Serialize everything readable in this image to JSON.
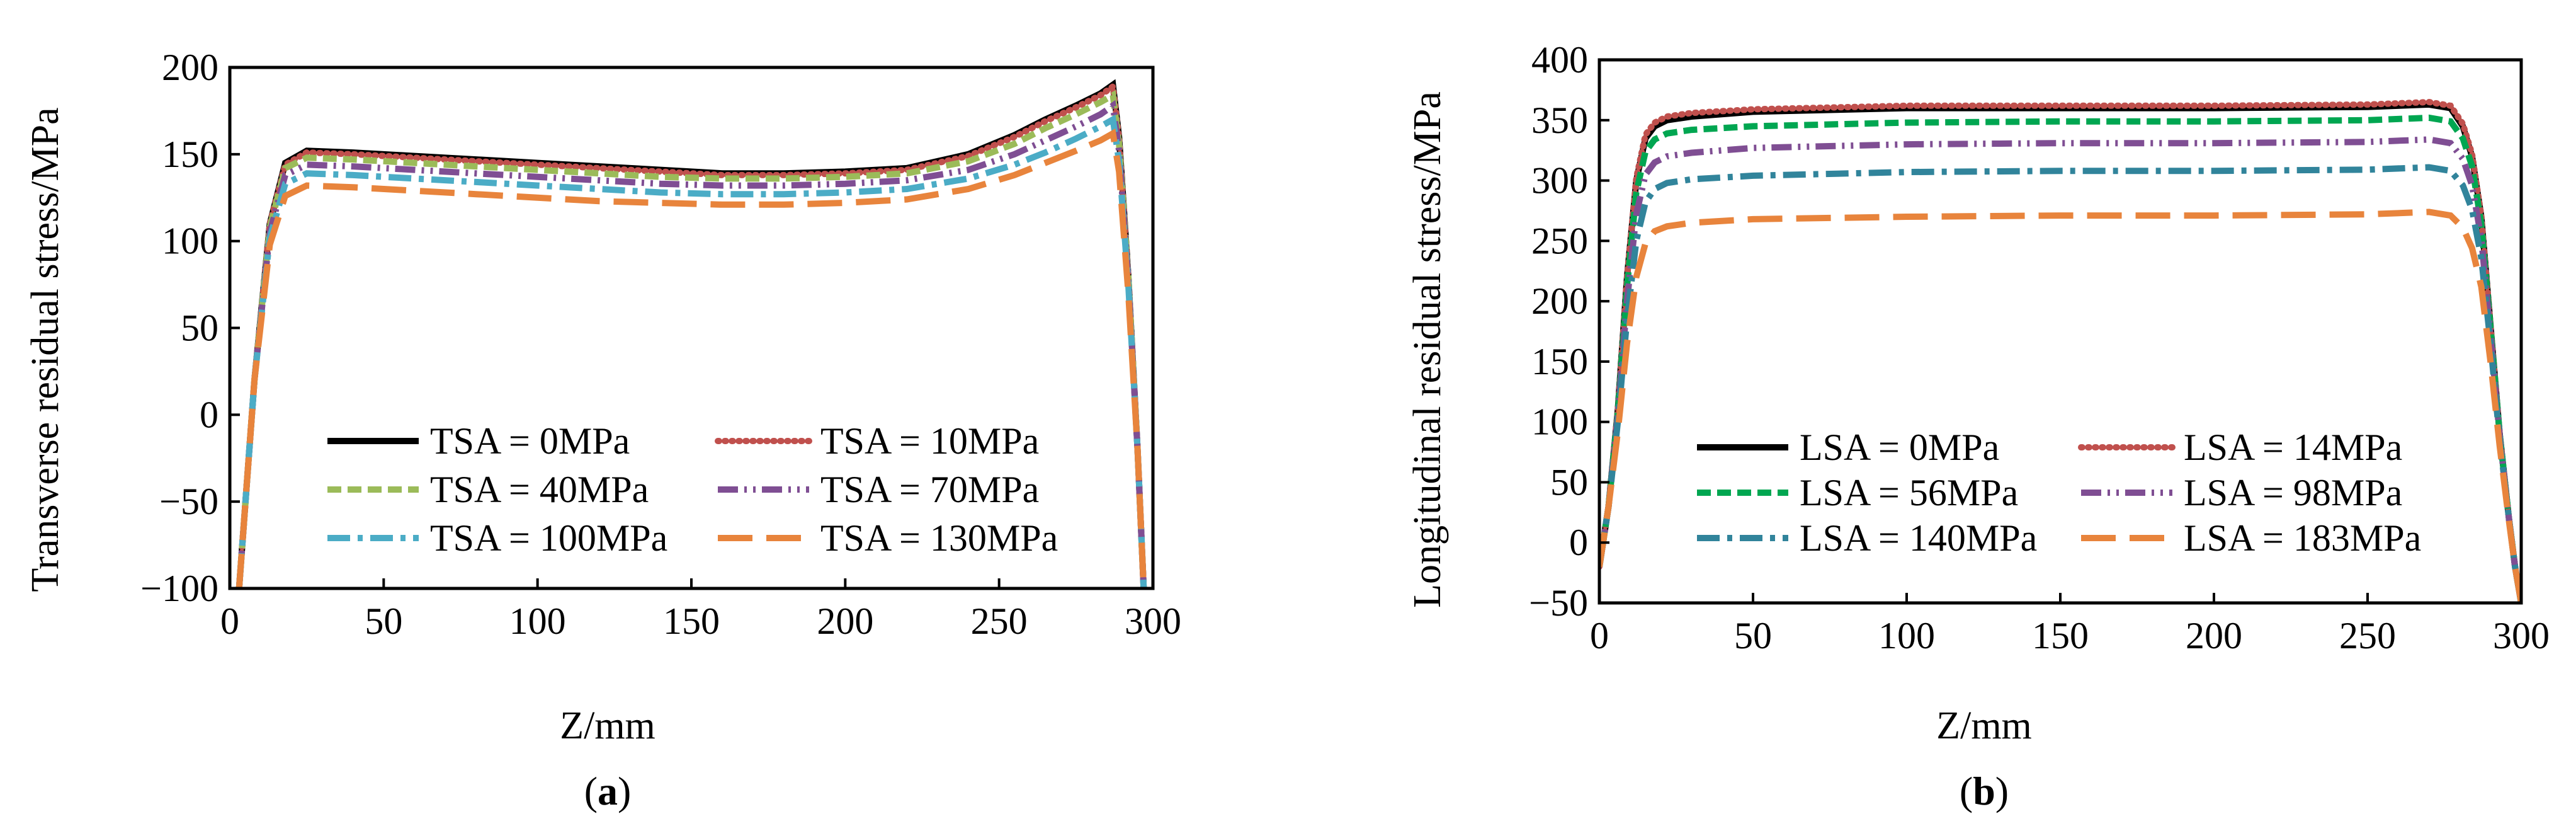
{
  "chart_data": [
    {
      "id": "a",
      "type": "line",
      "caption": {
        "open": "(",
        "letter": "a",
        "close": ")"
      },
      "xlabel": "Z/mm",
      "ylabel": "Transverse residual stress/MPa",
      "xlim": [
        0,
        300
      ],
      "ylim": [
        -100,
        200
      ],
      "xticks": [
        0,
        50,
        100,
        150,
        200,
        250,
        300
      ],
      "yticks": [
        -100,
        -50,
        0,
        50,
        100,
        150,
        200
      ],
      "ytick_labels": [
        "−100",
        "−50",
        "0",
        "50",
        "100",
        "150",
        "200"
      ],
      "grid": false,
      "legend_position": "bottom-center",
      "series": [
        {
          "name": "TSA = 0MPa",
          "color": "#000000",
          "dash": "solid",
          "x": [
            3,
            8,
            13,
            18,
            25,
            40,
            60,
            80,
            100,
            120,
            140,
            160,
            180,
            200,
            220,
            240,
            255,
            265,
            275,
            283,
            287,
            289,
            292,
            295,
            297
          ],
          "y": [
            -100,
            20,
            110,
            145,
            152,
            151,
            149,
            147,
            145,
            143,
            141,
            139,
            139,
            140,
            142,
            150,
            161,
            170,
            178,
            185,
            190,
            160,
            80,
            -20,
            -100
          ]
        },
        {
          "name": "TSA = 10MPa",
          "color": "#c0504d",
          "dash": "dot",
          "x": [
            3,
            8,
            13,
            18,
            25,
            40,
            60,
            80,
            100,
            120,
            140,
            160,
            180,
            200,
            220,
            240,
            255,
            265,
            275,
            283,
            287,
            289,
            292,
            295,
            297
          ],
          "y": [
            -100,
            20,
            110,
            144,
            151,
            150,
            148,
            146,
            144,
            142,
            140,
            138,
            138,
            139,
            141,
            149,
            160,
            169,
            177,
            184,
            189,
            159,
            80,
            -20,
            -100
          ]
        },
        {
          "name": "TSA = 40MPa",
          "color": "#9bbb59",
          "dash": "dash",
          "x": [
            3,
            8,
            13,
            18,
            25,
            40,
            60,
            80,
            100,
            120,
            140,
            160,
            180,
            200,
            220,
            240,
            255,
            265,
            275,
            283,
            287,
            289,
            292,
            295,
            297
          ],
          "y": [
            -100,
            20,
            108,
            142,
            148,
            147,
            145,
            143,
            141,
            139,
            137,
            136,
            136,
            137,
            139,
            146,
            156,
            165,
            173,
            180,
            184,
            156,
            80,
            -20,
            -100
          ]
        },
        {
          "name": "TSA = 70MPa",
          "color": "#7f4e93",
          "dash": "dashdotdot",
          "x": [
            3,
            8,
            13,
            18,
            25,
            40,
            60,
            80,
            100,
            120,
            140,
            160,
            180,
            200,
            220,
            240,
            255,
            265,
            275,
            283,
            287,
            289,
            292,
            295,
            297
          ],
          "y": [
            -100,
            20,
            105,
            138,
            144,
            143,
            141,
            139,
            137,
            135,
            133,
            132,
            132,
            133,
            135,
            141,
            150,
            158,
            166,
            173,
            178,
            152,
            78,
            -20,
            -100
          ]
        },
        {
          "name": "TSA = 100MPa",
          "color": "#4bacc6",
          "dash": "dashdot",
          "x": [
            3,
            8,
            13,
            18,
            25,
            40,
            60,
            80,
            100,
            120,
            140,
            160,
            180,
            200,
            220,
            240,
            255,
            265,
            275,
            283,
            287,
            289,
            292,
            295,
            297
          ],
          "y": [
            -100,
            20,
            102,
            133,
            139,
            138,
            136,
            134,
            132,
            130,
            128,
            127,
            127,
            128,
            130,
            136,
            144,
            151,
            159,
            166,
            170,
            146,
            75,
            -20,
            -100
          ]
        },
        {
          "name": "TSA = 130MPa",
          "color": "#e8843c",
          "dash": "longdash",
          "x": [
            3,
            8,
            13,
            18,
            25,
            40,
            60,
            80,
            100,
            120,
            140,
            160,
            180,
            200,
            220,
            240,
            255,
            265,
            275,
            283,
            287,
            289,
            292,
            295,
            297
          ],
          "y": [
            -100,
            20,
            98,
            126,
            132,
            131,
            129,
            127,
            125,
            123,
            122,
            121,
            121,
            122,
            124,
            130,
            138,
            145,
            152,
            158,
            162,
            140,
            70,
            -20,
            -100
          ]
        }
      ]
    },
    {
      "id": "b",
      "type": "line",
      "caption": {
        "open": "(",
        "letter": "b",
        "close": ")"
      },
      "xlabel": "Z/mm",
      "ylabel": "Longitudinal residual stress/MPa",
      "xlim": [
        0,
        300
      ],
      "ylim": [
        -50,
        400
      ],
      "xticks": [
        0,
        50,
        100,
        150,
        200,
        250,
        300
      ],
      "yticks": [
        -50,
        0,
        50,
        100,
        150,
        200,
        250,
        300,
        350,
        400
      ],
      "ytick_labels": [
        "−50",
        "0",
        "50",
        "100",
        "150",
        "200",
        "250",
        "300",
        "350",
        "400"
      ],
      "grid": false,
      "legend_position": "bottom-center",
      "series": [
        {
          "name": "LSA = 0MPa",
          "color": "#000000",
          "dash": "solid",
          "x": [
            0,
            3,
            6,
            9,
            12,
            15,
            18,
            22,
            30,
            50,
            100,
            150,
            200,
            250,
            270,
            277,
            281,
            284,
            287,
            290,
            293,
            296,
            298,
            300
          ],
          "y": [
            -20,
            30,
            110,
            220,
            300,
            335,
            345,
            350,
            353,
            357,
            360,
            360,
            360,
            361,
            363,
            360,
            345,
            320,
            270,
            180,
            90,
            20,
            -20,
            -50
          ]
        },
        {
          "name": "LSA = 14MPa",
          "color": "#c0504d",
          "dash": "dot",
          "x": [
            0,
            3,
            6,
            9,
            12,
            15,
            18,
            22,
            30,
            50,
            100,
            150,
            200,
            250,
            270,
            277,
            281,
            284,
            287,
            290,
            293,
            296,
            298,
            300
          ],
          "y": [
            -20,
            30,
            110,
            220,
            302,
            338,
            348,
            353,
            356,
            359,
            362,
            362,
            362,
            363,
            365,
            362,
            347,
            322,
            271,
            180,
            90,
            20,
            -20,
            -50
          ]
        },
        {
          "name": "LSA = 56MPa",
          "color": "#00a651",
          "dash": "dash",
          "x": [
            0,
            3,
            6,
            9,
            12,
            15,
            18,
            22,
            30,
            50,
            100,
            150,
            200,
            250,
            270,
            277,
            281,
            284,
            287,
            290,
            293,
            296,
            298,
            300
          ],
          "y": [
            -20,
            30,
            108,
            212,
            290,
            324,
            334,
            339,
            342,
            345,
            348,
            349,
            349,
            350,
            352,
            349,
            335,
            312,
            264,
            178,
            90,
            20,
            -20,
            -50
          ]
        },
        {
          "name": "LSA = 98MPa",
          "color": "#7f4e93",
          "dash": "dashdotdot",
          "x": [
            0,
            3,
            6,
            9,
            12,
            15,
            18,
            22,
            30,
            50,
            100,
            150,
            200,
            250,
            270,
            277,
            281,
            284,
            287,
            290,
            293,
            296,
            298,
            300
          ],
          "y": [
            -20,
            30,
            105,
            200,
            272,
            305,
            315,
            320,
            323,
            327,
            330,
            331,
            331,
            332,
            334,
            331,
            318,
            296,
            252,
            172,
            88,
            20,
            -20,
            -50
          ]
        },
        {
          "name": "LSA = 140MPa",
          "color": "#31849b",
          "dash": "dashdot",
          "x": [
            0,
            3,
            6,
            9,
            12,
            15,
            18,
            22,
            30,
            50,
            100,
            150,
            200,
            250,
            270,
            277,
            281,
            284,
            287,
            290,
            293,
            296,
            298,
            300
          ],
          "y": [
            -20,
            30,
            100,
            185,
            250,
            282,
            293,
            298,
            301,
            304,
            307,
            308,
            308,
            309,
            311,
            308,
            296,
            276,
            236,
            165,
            85,
            20,
            -20,
            -50
          ]
        },
        {
          "name": "LSA = 183MPa",
          "color": "#e8843c",
          "dash": "longdash",
          "x": [
            0,
            3,
            6,
            9,
            12,
            15,
            18,
            22,
            30,
            50,
            100,
            150,
            200,
            250,
            270,
            277,
            281,
            284,
            287,
            290,
            293,
            296,
            298,
            300
          ],
          "y": [
            -20,
            30,
            92,
            165,
            220,
            248,
            258,
            262,
            265,
            268,
            270,
            271,
            271,
            272,
            274,
            271,
            261,
            244,
            212,
            150,
            80,
            18,
            -20,
            -50
          ]
        }
      ]
    }
  ]
}
